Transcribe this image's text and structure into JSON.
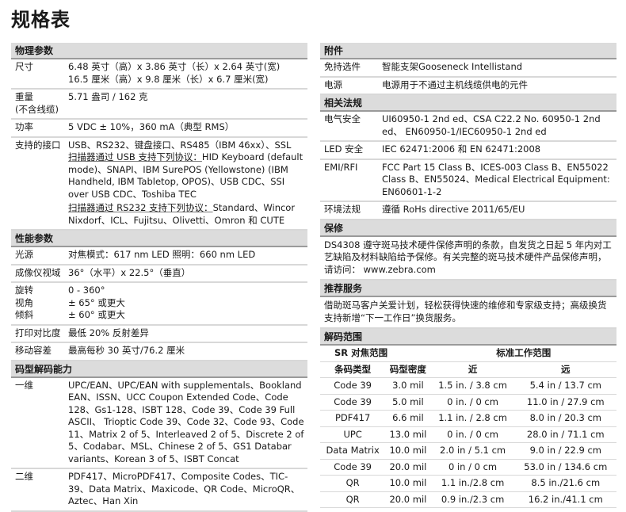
{
  "title": "规格表",
  "left": {
    "physical": {
      "header": "物理参数",
      "rows": [
        {
          "label": "尺寸",
          "lines": [
            "6.48 英寸（高）x 3.86 英寸（长）x 2.64 英寸(宽)",
            "16.5 厘米（高）x 9.8 厘米（长）x 6.7 厘米(宽)"
          ]
        },
        {
          "label": "重量",
          "label2": "(不含线缆)",
          "lines": [
            "5.71 盎司 / 162 克"
          ]
        },
        {
          "label": "功率",
          "lines": [
            "5 VDC ± 10%，360 mA（典型 RMS）"
          ]
        },
        {
          "label": "支持的接口",
          "intro": "USB、RS232、键盘接口、RS485（IBM 46xx）、SSL",
          "usb_head": "扫描器通过 USB 支持下列协议：",
          "usb_body": "HID Keyboard (default mode)、SNAPI、IBM SurePOS (Yellowstone) (IBM Handheld, IBM Tabletop, OPOS)、USB CDC、SSI over USB CDC、Toshiba TEC",
          "rs_head": "扫描器通过 RS232 支持下列协议：",
          "rs_body": "Standard、Wincor Nixdorf、ICL、Fujitsu、Olivetti、Omron 和 CUTE"
        }
      ]
    },
    "performance": {
      "header": "性能参数",
      "rows": [
        {
          "label": "光源",
          "lines": [
            "对焦模式：617 nm LED 照明：660 nm LED"
          ]
        },
        {
          "label": "成像仪视域",
          "lines": [
            "36°（水平）x 22.5°（垂直）"
          ]
        },
        {
          "labels": [
            "旋转",
            "视角",
            "倾斜"
          ],
          "lines": [
            "0 - 360°",
            "± 65° 或更大",
            "± 60° 或更大"
          ]
        },
        {
          "label": "打印对比度",
          "lines": [
            "最低 20% 反射差异"
          ]
        },
        {
          "label": "移动容差",
          "lines": [
            "最高每秒 30 英寸/76.2 厘米"
          ]
        }
      ]
    },
    "symbology": {
      "header": "码型解码能力",
      "rows": [
        {
          "label": "一维",
          "text": "UPC/EAN、UPC/EAN with supplementals、Bookland EAN、ISSN、UCC Coupon Extended Code、Code 128、Gs1-128、ISBT 128、Code 39、Code 39 Full ASCII、 Trioptic Code 39、Code 32、Code 93、Code 11、Matrix 2 of 5、Interleaved 2 of 5、Discrete 2 of 5、Codabar、MSL、Chinese 2 of 5、GS1 Databar variants、Korean 3 of 5、ISBT Concat"
        },
        {
          "label": "二维",
          "text": "PDF417、MicroPDF417、Composite Codes、TIC-39、Data Matrix、Maxicode、QR Code、MicroQR、Aztec、Han Xin"
        }
      ]
    }
  },
  "right": {
    "accessories": {
      "header": "附件",
      "rows": [
        {
          "label": "免持选件",
          "text": "智能支架Gooseneck Intellistand"
        },
        {
          "label": "电源",
          "text": "电源用于不通过主机线缆供电的元件"
        }
      ]
    },
    "regulatory": {
      "header": "相关法规",
      "rows": [
        {
          "label": "电气安全",
          "text": "UI60950-1 2nd ed、CSA C22.2 No. 60950-1 2nd ed、 EN60950-1/IEC60950-1 2nd ed"
        },
        {
          "label": "LED 安全",
          "text": "IEC 62471:2006 和 EN 62471:2008"
        },
        {
          "label": "EMI/RFI",
          "text": "FCC Part 15 Class B、ICES-003 Class B、EN55022 Class B、EN55024、Medical Electrical Equipment: EN60601-1-2"
        },
        {
          "label": "环境法规",
          "text": "遵循 RoHs directive 2011/65/EU"
        }
      ]
    },
    "warranty": {
      "header": "保修",
      "text": "DS4308 遵守斑马技术硬件保修声明的条款，自发货之日起 5 年内对工艺缺陷及材料缺陷给予保修。有关完整的斑马技术硬件产品保修声明，请访问： www.zebra.com"
    },
    "services": {
      "header": "推荐服务",
      "text": "借助斑马客户关爱计划，轻松获得快速的维修和专家级支持；高级换货支持新增“下一工作日”换货服务。"
    },
    "decode": {
      "header": "解码范围",
      "sr": "SR 对焦范围",
      "std": "标准工作范围",
      "columns": [
        "条码类型",
        "码型密度",
        "近",
        "远"
      ],
      "rows": [
        [
          "Code 39",
          "3.0 mil",
          "1.5 in. / 3.8 cm",
          "5.4 in / 13.7 cm"
        ],
        [
          "Code 39",
          "5.0 mil",
          "0 in. / 0 cm",
          "11.0 in / 27.9 cm"
        ],
        [
          "PDF417",
          "6.6 mil",
          "1.1 in. / 2.8 cm",
          "8.0 in / 20.3 cm"
        ],
        [
          "UPC",
          "13.0 mil",
          "0 in. / 0 cm",
          "28.0 in / 71.1 cm"
        ],
        [
          "Data Matrix",
          "10.0 mil",
          "2.0 in / 5.1 cm",
          "9.0 in / 22.9 cm"
        ],
        [
          "Code 39",
          "20.0 mil",
          "0 in / 0 cm",
          "53.0 in / 134.6 cm"
        ],
        [
          "QR",
          "10.0 mil",
          "1.1 in./2.8 cm",
          "8.5 in./21.6 cm"
        ],
        [
          "QR",
          "20.0 mil",
          "0.9 in./2.3 cm",
          "16.2 in./41.1 cm"
        ]
      ]
    }
  }
}
